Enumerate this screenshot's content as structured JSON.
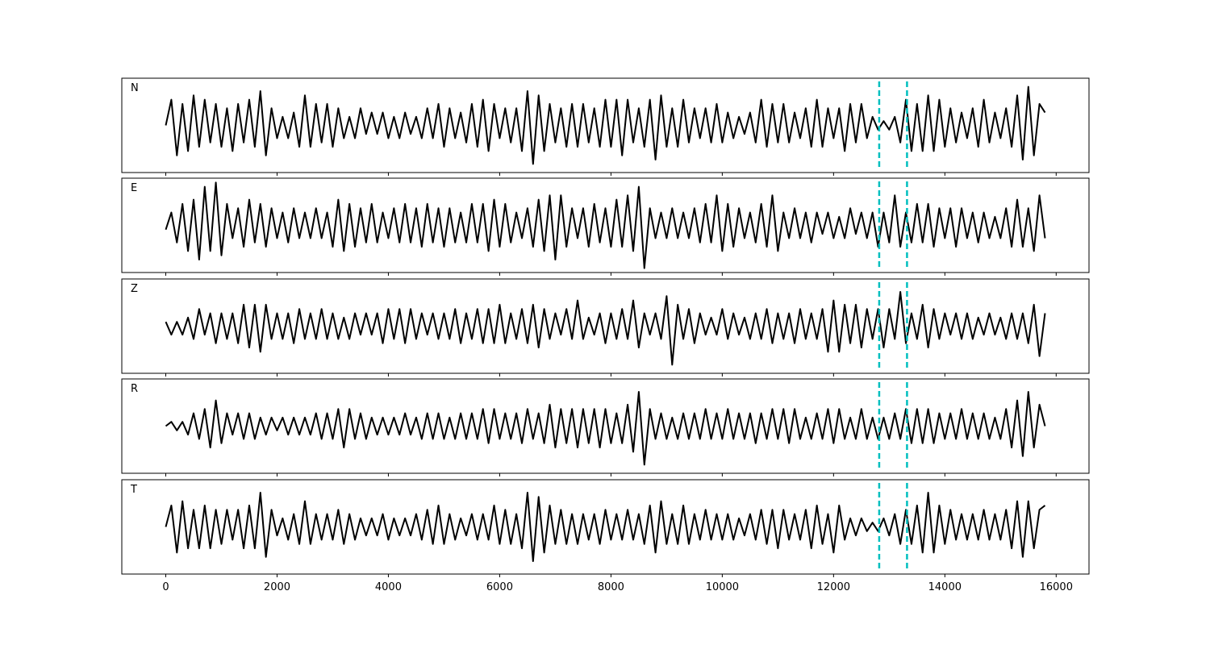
{
  "chart_data": {
    "type": "line",
    "x": [
      0,
      100,
      200,
      300,
      400,
      500,
      600,
      700,
      800,
      900,
      1000,
      1100,
      1200,
      1300,
      1400,
      1500,
      1600,
      1700,
      1800,
      1900,
      2000,
      2100,
      2200,
      2300,
      2400,
      2500,
      2600,
      2700,
      2800,
      2900,
      3000,
      3100,
      3200,
      3300,
      3400,
      3500,
      3600,
      3700,
      3800,
      3900,
      4000,
      4100,
      4200,
      4300,
      4400,
      4500,
      4600,
      4700,
      4800,
      4900,
      5000,
      5100,
      5200,
      5300,
      5400,
      5500,
      5600,
      5700,
      5800,
      5900,
      6000,
      6100,
      6200,
      6300,
      6400,
      6500,
      6600,
      6700,
      6800,
      6900,
      7000,
      7100,
      7200,
      7300,
      7400,
      7500,
      7600,
      7700,
      7800,
      7900,
      8000,
      8100,
      8200,
      8300,
      8400,
      8500,
      8600,
      8700,
      8800,
      8900,
      9000,
      9100,
      9200,
      9300,
      9400,
      9500,
      9600,
      9700,
      9800,
      9900,
      10000,
      10100,
      10200,
      10300,
      10400,
      10500,
      10600,
      10700,
      10800,
      10900,
      11000,
      11100,
      11200,
      11300,
      11400,
      11500,
      11600,
      11700,
      11800,
      11900,
      12000,
      12100,
      12200,
      12300,
      12400,
      12500,
      12600,
      12700,
      12800,
      12900,
      13000,
      13100,
      13200,
      13300,
      13400,
      13500,
      13600,
      13700,
      13800,
      13900,
      14000,
      14100,
      14200,
      14300,
      14400,
      14500,
      14600,
      14700,
      14800,
      14900,
      15000,
      15100,
      15200,
      15300,
      15400,
      15500,
      15600,
      15700,
      15800
    ],
    "xlim": [
      -790,
      16590
    ],
    "xticks": [
      0,
      2000,
      4000,
      6000,
      8000,
      10000,
      12000,
      14000,
      16000
    ],
    "ylim": [
      -1.1,
      1.1
    ],
    "vlines": [
      12820,
      13320
    ],
    "vline_color": "#00bfbf",
    "series": [
      {
        "name": "N",
        "color": "#000000",
        "values": [
          0,
          0.6,
          -0.7,
          0.5,
          -0.6,
          0.7,
          -0.5,
          0.6,
          -0.4,
          0.5,
          -0.5,
          0.4,
          -0.6,
          0.5,
          -0.4,
          0.6,
          -0.5,
          0.8,
          -0.7,
          0.4,
          -0.3,
          0.2,
          -0.3,
          0.3,
          -0.5,
          0.7,
          -0.5,
          0.5,
          -0.4,
          0.5,
          -0.5,
          0.4,
          -0.3,
          0.2,
          -0.3,
          0.4,
          -0.2,
          0.3,
          -0.2,
          0.3,
          -0.3,
          0.2,
          -0.3,
          0.3,
          -0.2,
          0.2,
          -0.3,
          0.4,
          -0.3,
          0.5,
          -0.5,
          0.4,
          -0.3,
          0.3,
          -0.4,
          0.5,
          -0.5,
          0.6,
          -0.6,
          0.5,
          -0.3,
          0.4,
          -0.4,
          0.4,
          -0.6,
          0.8,
          -0.9,
          0.7,
          -0.6,
          0.5,
          -0.4,
          0.4,
          -0.5,
          0.5,
          -0.5,
          0.5,
          -0.4,
          0.4,
          -0.5,
          0.6,
          -0.5,
          0.6,
          -0.7,
          0.6,
          -0.4,
          0.4,
          -0.5,
          0.6,
          -0.8,
          0.7,
          -0.5,
          0.4,
          -0.5,
          0.6,
          -0.4,
          0.4,
          -0.3,
          0.4,
          -0.4,
          0.5,
          -0.4,
          0.3,
          -0.3,
          0.2,
          -0.2,
          0.3,
          -0.4,
          0.6,
          -0.5,
          0.5,
          -0.4,
          0.5,
          -0.4,
          0.3,
          -0.3,
          0.4,
          -0.5,
          0.6,
          -0.5,
          0.4,
          -0.3,
          0.4,
          -0.6,
          0.5,
          -0.4,
          0.5,
          -0.3,
          0.2,
          -0.1,
          0.1,
          -0.1,
          0.2,
          -0.4,
          0.6,
          -0.6,
          0.5,
          -0.6,
          0.7,
          -0.6,
          0.6,
          -0.5,
          0.4,
          -0.4,
          0.3,
          -0.3,
          0.4,
          -0.5,
          0.6,
          -0.4,
          0.3,
          -0.3,
          0.4,
          -0.5,
          0.7,
          -0.8,
          0.9,
          -0.7,
          0.5,
          0.3
        ]
      },
      {
        "name": "E",
        "color": "#000000",
        "values": [
          -0.1,
          0.3,
          -0.4,
          0.5,
          -0.6,
          0.6,
          -0.8,
          0.9,
          -0.6,
          1.0,
          -0.7,
          0.5,
          -0.3,
          0.4,
          -0.5,
          0.6,
          -0.4,
          0.5,
          -0.5,
          0.4,
          -0.3,
          0.3,
          -0.4,
          0.4,
          -0.3,
          0.3,
          -0.3,
          0.4,
          -0.3,
          0.3,
          -0.5,
          0.6,
          -0.6,
          0.5,
          -0.5,
          0.4,
          -0.4,
          0.5,
          -0.4,
          0.3,
          -0.3,
          0.4,
          -0.4,
          0.5,
          -0.4,
          0.4,
          -0.5,
          0.5,
          -0.4,
          0.4,
          -0.5,
          0.4,
          -0.4,
          0.3,
          -0.4,
          0.5,
          -0.4,
          0.5,
          -0.6,
          0.6,
          -0.5,
          0.5,
          -0.4,
          0.3,
          -0.3,
          0.4,
          -0.5,
          0.6,
          -0.6,
          0.7,
          -0.8,
          0.7,
          -0.5,
          0.4,
          -0.3,
          0.4,
          -0.5,
          0.5,
          -0.4,
          0.4,
          -0.5,
          0.6,
          -0.5,
          0.7,
          -0.6,
          0.9,
          -1.0,
          0.4,
          -0.3,
          0.3,
          -0.3,
          0.4,
          -0.3,
          0.3,
          -0.3,
          0.4,
          -0.4,
          0.5,
          -0.4,
          0.7,
          -0.6,
          0.5,
          -0.5,
          0.4,
          -0.3,
          0.3,
          -0.4,
          0.5,
          -0.5,
          0.7,
          -0.6,
          0.3,
          -0.3,
          0.4,
          -0.3,
          0.3,
          -0.4,
          0.3,
          -0.2,
          0.3,
          -0.3,
          0.2,
          -0.3,
          0.4,
          -0.2,
          0.3,
          -0.3,
          0.3,
          -0.5,
          0.3,
          -0.4,
          0.7,
          -0.5,
          0.3,
          -0.4,
          0.5,
          -0.4,
          0.5,
          -0.5,
          0.4,
          -0.3,
          0.4,
          -0.5,
          0.4,
          -0.3,
          0.3,
          -0.4,
          0.3,
          -0.3,
          0.2,
          -0.3,
          0.4,
          -0.5,
          0.6,
          -0.5,
          0.4,
          -0.6,
          0.7,
          -0.3
        ]
      },
      {
        "name": "Z",
        "color": "#000000",
        "values": [
          0.1,
          -0.2,
          0.1,
          -0.2,
          0.2,
          -0.3,
          0.4,
          -0.2,
          0.3,
          -0.4,
          0.3,
          -0.3,
          0.3,
          -0.4,
          0.5,
          -0.5,
          0.5,
          -0.6,
          0.5,
          -0.3,
          0.3,
          -0.3,
          0.3,
          -0.4,
          0.4,
          -0.3,
          0.3,
          -0.3,
          0.4,
          -0.3,
          0.3,
          -0.3,
          0.2,
          -0.3,
          0.3,
          -0.2,
          0.3,
          -0.2,
          0.3,
          -0.4,
          0.4,
          -0.3,
          0.4,
          -0.4,
          0.4,
          -0.3,
          0.3,
          -0.2,
          0.3,
          -0.3,
          0.3,
          -0.3,
          0.4,
          -0.4,
          0.3,
          -0.3,
          0.4,
          -0.4,
          0.4,
          -0.4,
          0.5,
          -0.4,
          0.3,
          -0.3,
          0.4,
          -0.4,
          0.5,
          -0.5,
          0.4,
          -0.3,
          0.3,
          -0.2,
          0.4,
          -0.3,
          0.6,
          -0.3,
          0.2,
          -0.2,
          0.3,
          -0.4,
          0.3,
          -0.3,
          0.4,
          -0.3,
          0.6,
          -0.5,
          0.3,
          -0.2,
          0.3,
          -0.3,
          0.7,
          -0.9,
          0.5,
          -0.3,
          0.4,
          -0.4,
          0.3,
          -0.2,
          0.2,
          -0.2,
          0.4,
          -0.3,
          0.3,
          -0.2,
          0.2,
          -0.3,
          0.3,
          -0.3,
          0.4,
          -0.4,
          0.3,
          -0.3,
          0.3,
          -0.4,
          0.4,
          -0.3,
          0.3,
          -0.3,
          0.4,
          -0.6,
          0.6,
          -0.6,
          0.5,
          -0.4,
          0.5,
          -0.5,
          0.4,
          -0.3,
          0.4,
          -0.5,
          0.4,
          -0.3,
          0.8,
          -0.4,
          0.3,
          -0.3,
          0.5,
          -0.5,
          0.4,
          -0.3,
          0.3,
          -0.2,
          0.3,
          -0.3,
          0.3,
          -0.3,
          0.2,
          -0.2,
          0.3,
          -0.2,
          0.2,
          -0.3,
          0.3,
          -0.3,
          0.3,
          -0.4,
          0.5,
          -0.7,
          0.3
        ]
      },
      {
        "name": "R",
        "color": "#000000",
        "values": [
          0.0,
          0.1,
          -0.1,
          0.1,
          -0.2,
          0.3,
          -0.3,
          0.4,
          -0.5,
          0.6,
          -0.4,
          0.3,
          -0.2,
          0.3,
          -0.3,
          0.3,
          -0.3,
          0.2,
          -0.2,
          0.2,
          -0.1,
          0.2,
          -0.2,
          0.2,
          -0.2,
          0.2,
          -0.2,
          0.3,
          -0.3,
          0.3,
          -0.3,
          0.4,
          -0.5,
          0.4,
          -0.3,
          0.3,
          -0.3,
          0.2,
          -0.2,
          0.2,
          -0.2,
          0.2,
          -0.2,
          0.3,
          -0.2,
          0.2,
          -0.3,
          0.3,
          -0.3,
          0.3,
          -0.3,
          0.2,
          -0.3,
          0.3,
          -0.3,
          0.3,
          -0.3,
          0.4,
          -0.4,
          0.4,
          -0.3,
          0.3,
          -0.3,
          0.3,
          -0.4,
          0.4,
          -0.3,
          0.3,
          -0.4,
          0.5,
          -0.5,
          0.4,
          -0.4,
          0.4,
          -0.5,
          0.4,
          -0.4,
          0.4,
          -0.5,
          0.4,
          -0.4,
          0.3,
          -0.4,
          0.5,
          -0.6,
          0.8,
          -0.9,
          0.4,
          -0.3,
          0.3,
          -0.3,
          0.2,
          -0.3,
          0.3,
          -0.3,
          0.3,
          -0.3,
          0.4,
          -0.3,
          0.3,
          -0.3,
          0.4,
          -0.3,
          0.3,
          -0.3,
          0.3,
          -0.4,
          0.3,
          -0.3,
          0.4,
          -0.3,
          0.4,
          -0.4,
          0.4,
          -0.3,
          0.2,
          -0.3,
          0.3,
          -0.3,
          0.4,
          -0.4,
          0.4,
          -0.3,
          0.2,
          -0.3,
          0.4,
          -0.3,
          0.2,
          -0.3,
          0.2,
          -0.3,
          0.3,
          -0.3,
          0.4,
          -0.4,
          0.4,
          -0.4,
          0.4,
          -0.4,
          0.3,
          -0.3,
          0.3,
          -0.3,
          0.4,
          -0.3,
          0.3,
          -0.3,
          0.3,
          -0.3,
          0.2,
          -0.3,
          0.4,
          -0.5,
          0.6,
          -0.7,
          0.8,
          -0.5,
          0.5,
          0.0
        ]
      },
      {
        "name": "T",
        "color": "#000000",
        "values": [
          0.0,
          0.5,
          -0.6,
          0.6,
          -0.5,
          0.4,
          -0.5,
          0.5,
          -0.5,
          0.4,
          -0.4,
          0.4,
          -0.3,
          0.4,
          -0.5,
          0.5,
          -0.5,
          0.8,
          -0.7,
          0.4,
          -0.2,
          0.2,
          -0.3,
          0.3,
          -0.4,
          0.6,
          -0.4,
          0.3,
          -0.3,
          0.3,
          -0.3,
          0.4,
          -0.4,
          0.3,
          -0.3,
          0.2,
          -0.2,
          0.2,
          -0.2,
          0.3,
          -0.3,
          0.2,
          -0.2,
          0.2,
          -0.2,
          0.3,
          -0.3,
          0.4,
          -0.4,
          0.5,
          -0.4,
          0.3,
          -0.3,
          0.2,
          -0.2,
          0.3,
          -0.3,
          0.3,
          -0.3,
          0.5,
          -0.4,
          0.4,
          -0.4,
          0.3,
          -0.5,
          0.8,
          -0.8,
          0.7,
          -0.6,
          0.5,
          -0.4,
          0.4,
          -0.4,
          0.3,
          -0.4,
          0.3,
          -0.3,
          0.3,
          -0.4,
          0.4,
          -0.3,
          0.3,
          -0.3,
          0.4,
          -0.3,
          0.3,
          -0.4,
          0.5,
          -0.6,
          0.6,
          -0.4,
          0.3,
          -0.4,
          0.5,
          -0.4,
          0.3,
          -0.3,
          0.4,
          -0.3,
          0.3,
          -0.3,
          0.3,
          -0.3,
          0.2,
          -0.2,
          0.3,
          -0.3,
          0.4,
          -0.4,
          0.4,
          -0.5,
          0.4,
          -0.3,
          0.3,
          -0.3,
          0.4,
          -0.5,
          0.5,
          -0.4,
          0.3,
          -0.6,
          0.5,
          -0.3,
          0.2,
          -0.2,
          0.2,
          -0.1,
          0.1,
          -0.1,
          0.2,
          -0.2,
          0.3,
          -0.4,
          0.4,
          -0.4,
          0.5,
          -0.6,
          0.8,
          -0.6,
          0.5,
          -0.4,
          0.4,
          -0.3,
          0.3,
          -0.3,
          0.3,
          -0.3,
          0.4,
          -0.3,
          0.3,
          -0.3,
          0.4,
          -0.5,
          0.6,
          -0.7,
          0.6,
          -0.5,
          0.4,
          0.5
        ]
      }
    ]
  }
}
